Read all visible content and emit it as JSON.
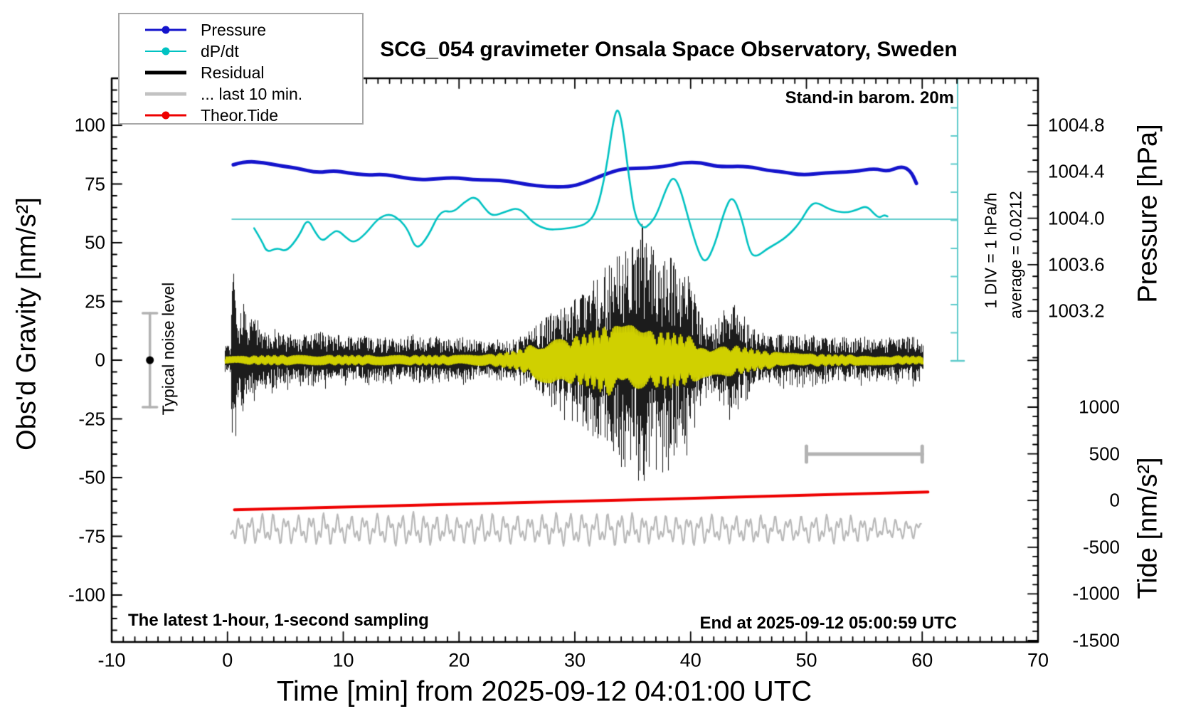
{
  "title": "SCG_054 gravimeter Onsala Space Observatory, Sweden",
  "annotations": {
    "barometer": "Stand-in barom. 20m",
    "div_scale": "1 DIV = 1 hPa/h",
    "average": "average = 0.0212",
    "noise_label": "Typical noise level",
    "sampling_note": "The latest 1-hour, 1-second sampling",
    "end_note": "End at 2025-09-12 05:00:59 UTC"
  },
  "legend": {
    "items": [
      {
        "label": "Pressure",
        "color": "#1414cc",
        "lw": 3,
        "dot": true
      },
      {
        "label": "dP/dt",
        "color": "#00c2c2",
        "lw": 2,
        "dot": true
      },
      {
        "label": "Residual",
        "color": "#000000",
        "lw": 5,
        "dot": false
      },
      {
        "label": "... last 10 min.",
        "color": "#c2c2c2",
        "lw": 5,
        "dot": false
      },
      {
        "label": "Theor.Tide",
        "color": "#ee0000",
        "lw": 3,
        "dot": true
      }
    ]
  },
  "axes": {
    "x": {
      "label": "Time [min] from 2025-09-12 04:01:00 UTC",
      "min": -10,
      "max": 70,
      "major_ticks": [
        -10,
        0,
        10,
        20,
        30,
        40,
        50,
        60,
        70
      ],
      "minor_step": 1
    },
    "gravity": {
      "label": "Obs'd Gravity [nm/s²]",
      "min": -120,
      "max": 120,
      "major_ticks": [
        100,
        75,
        50,
        25,
        0,
        -25,
        -50,
        -75,
        -100
      ],
      "minor_step": 5
    },
    "pressure": {
      "label": "Pressure [hPa]",
      "major_ticks": [
        "1004.8",
        "1004.4",
        "1004.0",
        "1003.6",
        "1003.2"
      ],
      "minor_step": 0.1
    },
    "tide": {
      "label": "Tide [nm/s²]",
      "major_ticks": [
        "1000",
        "500",
        "0",
        "-500",
        "-1000",
        "-1500"
      ],
      "minor_step": 100
    }
  },
  "colors": {
    "pressure": "#1414cc",
    "dpdt": "#00c2c2",
    "dpdt_guides": "#5fcccc",
    "residual": "#000000",
    "residual_filtered": "#d0d000",
    "last10": "#b9b9b9",
    "tide": "#ee0000",
    "gray_markers": "#b3b3b3"
  },
  "chart_data": {
    "type": "line",
    "x_unit": "min",
    "x_range": [
      -10,
      70
    ],
    "series": [
      {
        "name": "Pressure",
        "axis": "pressure",
        "unit": "hPa",
        "color": "#1414cc",
        "width": 5,
        "points": [
          [
            0.5,
            1004.46
          ],
          [
            1.5,
            1004.49
          ],
          [
            3.1,
            1004.48
          ],
          [
            4.6,
            1004.45
          ],
          [
            6.1,
            1004.43
          ],
          [
            7.7,
            1004.39
          ],
          [
            9.2,
            1004.41
          ],
          [
            10.4,
            1004.39
          ],
          [
            12.0,
            1004.37
          ],
          [
            13.5,
            1004.38
          ],
          [
            15.1,
            1004.35
          ],
          [
            16.6,
            1004.33
          ],
          [
            18.1,
            1004.34
          ],
          [
            19.7,
            1004.35
          ],
          [
            21.2,
            1004.33
          ],
          [
            22.7,
            1004.33
          ],
          [
            24.3,
            1004.32
          ],
          [
            25.8,
            1004.29
          ],
          [
            27.6,
            1004.27
          ],
          [
            29.5,
            1004.27
          ],
          [
            30.7,
            1004.3
          ],
          [
            31.9,
            1004.35
          ],
          [
            33.2,
            1004.4
          ],
          [
            34.4,
            1004.43
          ],
          [
            36.2,
            1004.43
          ],
          [
            38.1,
            1004.45
          ],
          [
            39.3,
            1004.48
          ],
          [
            40.9,
            1004.48
          ],
          [
            42.4,
            1004.44
          ],
          [
            44.8,
            1004.45
          ],
          [
            46.7,
            1004.41
          ],
          [
            47.9,
            1004.4
          ],
          [
            49.6,
            1004.37
          ],
          [
            51.6,
            1004.39
          ],
          [
            54.1,
            1004.4
          ],
          [
            55.9,
            1004.43
          ],
          [
            57.0,
            1004.4
          ],
          [
            58.2,
            1004.45
          ],
          [
            59.0,
            1004.41
          ],
          [
            59.5,
            1004.3
          ]
        ]
      },
      {
        "name": "dP/dt",
        "axis": "dpdt",
        "unit": "hPa/h",
        "color": "#00c2c2",
        "width": 2.6,
        "average": 0.0212,
        "points": [
          [
            2.3,
            -0.29
          ],
          [
            3.0,
            -0.75
          ],
          [
            3.4,
            -1.13
          ],
          [
            4.3,
            -0.96
          ],
          [
            5.1,
            -1.11
          ],
          [
            6.2,
            -0.55
          ],
          [
            6.9,
            0.07
          ],
          [
            7.6,
            -0.45
          ],
          [
            8.2,
            -0.76
          ],
          [
            8.9,
            -0.5
          ],
          [
            9.5,
            -0.34
          ],
          [
            10.2,
            -0.6
          ],
          [
            10.9,
            -0.81
          ],
          [
            11.9,
            -0.5
          ],
          [
            13.0,
            0.05
          ],
          [
            14.0,
            0.22
          ],
          [
            14.9,
            0.0
          ],
          [
            15.6,
            -0.35
          ],
          [
            16.3,
            -1.06
          ],
          [
            17.3,
            -0.6
          ],
          [
            18.4,
            0.34
          ],
          [
            19.5,
            0.25
          ],
          [
            20.4,
            0.6
          ],
          [
            21.4,
            0.84
          ],
          [
            22.3,
            0.35
          ],
          [
            22.9,
            0.12
          ],
          [
            24.0,
            0.28
          ],
          [
            25.2,
            0.44
          ],
          [
            26.4,
            -0.12
          ],
          [
            27.6,
            -0.34
          ],
          [
            28.8,
            -0.32
          ],
          [
            30.1,
            -0.25
          ],
          [
            31.1,
            -0.12
          ],
          [
            31.9,
            0.3
          ],
          [
            32.7,
            1.7
          ],
          [
            33.3,
            3.4
          ],
          [
            33.7,
            3.91
          ],
          [
            34.1,
            3.3
          ],
          [
            34.7,
            1.4
          ],
          [
            35.2,
            0.1
          ],
          [
            35.9,
            -0.32
          ],
          [
            36.5,
            -0.15
          ],
          [
            37.1,
            0.2
          ],
          [
            37.9,
            1.1
          ],
          [
            38.5,
            1.52
          ],
          [
            39.1,
            1.1
          ],
          [
            39.9,
            -0.1
          ],
          [
            40.7,
            -1.15
          ],
          [
            41.3,
            -1.52
          ],
          [
            42.1,
            -0.85
          ],
          [
            42.9,
            0.3
          ],
          [
            43.6,
            0.88
          ],
          [
            44.4,
            0.1
          ],
          [
            45.1,
            -1.15
          ],
          [
            45.7,
            -1.28
          ],
          [
            46.6,
            -1.0
          ],
          [
            47.5,
            -0.8
          ],
          [
            48.4,
            -0.55
          ],
          [
            49.4,
            -0.12
          ],
          [
            50.3,
            0.5
          ],
          [
            50.9,
            0.61
          ],
          [
            51.8,
            0.4
          ],
          [
            52.6,
            0.28
          ],
          [
            53.5,
            0.25
          ],
          [
            54.4,
            0.35
          ],
          [
            55.2,
            0.49
          ],
          [
            55.9,
            0.18
          ],
          [
            56.3,
            0.07
          ],
          [
            56.7,
            0.17
          ],
          [
            57.0,
            0.12
          ]
        ]
      },
      {
        "name": "Residual",
        "axis": "gravity",
        "unit": "nm/s²",
        "color": "#000000",
        "style": "noise",
        "envelope": [
          [
            0.3,
            6
          ],
          [
            0.42,
            58
          ],
          [
            0.55,
            45
          ],
          [
            0.75,
            34
          ],
          [
            1.0,
            22
          ],
          [
            1.4,
            26
          ],
          [
            1.8,
            16
          ],
          [
            2.3,
            24
          ],
          [
            2.8,
            13
          ],
          [
            3.5,
            12
          ],
          [
            4.2,
            14
          ],
          [
            5.0,
            11
          ],
          [
            6.0,
            12
          ],
          [
            7.0,
            10
          ],
          [
            8.0,
            12
          ],
          [
            9.0,
            10
          ],
          [
            10.0,
            11
          ],
          [
            11.0,
            9
          ],
          [
            12.0,
            11
          ],
          [
            13.0,
            9
          ],
          [
            14.0,
            10
          ],
          [
            15.0,
            9
          ],
          [
            16.0,
            11
          ],
          [
            17.0,
            9
          ],
          [
            18.0,
            10
          ],
          [
            19.0,
            9
          ],
          [
            20.0,
            10
          ],
          [
            21.0,
            9
          ],
          [
            22.0,
            8
          ],
          [
            23.0,
            9
          ],
          [
            24.0,
            8
          ],
          [
            25.0,
            9
          ],
          [
            26.0,
            12
          ],
          [
            27.0,
            16
          ],
          [
            28.0,
            20
          ],
          [
            29.0,
            22
          ],
          [
            30.0,
            26
          ],
          [
            31.0,
            31
          ],
          [
            32.0,
            36
          ],
          [
            33.0,
            42
          ],
          [
            34.0,
            45
          ],
          [
            35.0,
            48
          ],
          [
            35.8,
            58
          ],
          [
            36.3,
            50
          ],
          [
            37.0,
            46
          ],
          [
            38.0,
            44
          ],
          [
            39.0,
            42
          ],
          [
            40.0,
            34
          ],
          [
            40.7,
            22
          ],
          [
            41.3,
            16
          ],
          [
            42.0,
            14
          ],
          [
            42.7,
            20
          ],
          [
            43.5,
            25
          ],
          [
            44.3,
            22
          ],
          [
            45.0,
            15
          ],
          [
            46.0,
            12
          ],
          [
            47.0,
            10
          ],
          [
            48.0,
            11
          ],
          [
            49.0,
            10
          ],
          [
            50.0,
            11
          ],
          [
            51.0,
            10
          ],
          [
            52.0,
            9
          ],
          [
            53.0,
            10
          ],
          [
            54.0,
            9
          ],
          [
            55.0,
            10
          ],
          [
            56.0,
            9
          ],
          [
            57.0,
            10
          ],
          [
            58.0,
            9
          ],
          [
            59.0,
            10
          ],
          [
            60.0,
            9
          ]
        ]
      },
      {
        "name": "Residual filtered overlay",
        "axis": "gravity",
        "unit": "nm/s²",
        "color": "#d0d000",
        "style": "wavepacket",
        "period_min": 0.14,
        "envelope": [
          [
            0.3,
            1.5
          ],
          [
            4,
            2
          ],
          [
            8,
            2
          ],
          [
            12,
            2
          ],
          [
            16,
            2
          ],
          [
            20,
            2
          ],
          [
            23,
            2.5
          ],
          [
            25,
            4
          ],
          [
            26,
            6
          ],
          [
            27,
            9
          ],
          [
            28,
            10
          ],
          [
            29,
            9.5
          ],
          [
            30,
            10
          ],
          [
            31,
            11
          ],
          [
            32,
            13
          ],
          [
            33,
            15
          ],
          [
            34,
            14
          ],
          [
            35,
            15
          ],
          [
            36,
            13
          ],
          [
            37,
            11.5
          ],
          [
            38,
            12
          ],
          [
            39,
            11
          ],
          [
            40,
            10
          ],
          [
            41,
            7.5
          ],
          [
            42,
            6
          ],
          [
            43,
            7
          ],
          [
            44,
            6
          ],
          [
            45,
            5
          ],
          [
            46,
            4
          ],
          [
            47,
            3.5
          ],
          [
            48,
            3
          ],
          [
            50,
            2.6
          ],
          [
            53,
            2.2
          ],
          [
            56,
            2
          ],
          [
            58,
            1.8
          ],
          [
            60,
            1.6
          ]
        ]
      },
      {
        "name": "... last 10 min.",
        "axis": "gravity",
        "unit": "nm/s²",
        "color": "#b9b9b9",
        "style": "wiggle",
        "center": -72,
        "width": 2.2,
        "envelope": [
          [
            0.3,
            5
          ],
          [
            2,
            6.5
          ],
          [
            4,
            7
          ],
          [
            6,
            6
          ],
          [
            8,
            7.5
          ],
          [
            10,
            6
          ],
          [
            12,
            6.5
          ],
          [
            14,
            7
          ],
          [
            16,
            7.5
          ],
          [
            18,
            6.5
          ],
          [
            20,
            6
          ],
          [
            22,
            7
          ],
          [
            24,
            6.5
          ],
          [
            26,
            6
          ],
          [
            28,
            7
          ],
          [
            30,
            7.5
          ],
          [
            32,
            7
          ],
          [
            34,
            7.5
          ],
          [
            36,
            6.5
          ],
          [
            38,
            6
          ],
          [
            40,
            7
          ],
          [
            42,
            6.5
          ],
          [
            44,
            6
          ],
          [
            46,
            6.5
          ],
          [
            48,
            5.5
          ],
          [
            50,
            6
          ],
          [
            52,
            6.5
          ],
          [
            54,
            6
          ],
          [
            56,
            5
          ],
          [
            58,
            4.5
          ],
          [
            59.7,
            4
          ]
        ]
      },
      {
        "name": "Theor.Tide",
        "axis": "tide",
        "unit": "nm/s²",
        "color": "#ee0000",
        "width": 4,
        "points": [
          [
            0.6,
            -99
          ],
          [
            15,
            -52
          ],
          [
            30,
            -10
          ],
          [
            45,
            40
          ],
          [
            60.5,
            91
          ]
        ]
      }
    ],
    "markers": {
      "typical_noise_bar": {
        "t": -6.7,
        "center": 0,
        "half_range": 20
      },
      "ten_min_scale_bar": {
        "t0": 50,
        "t1": 60,
        "gravity_level": -40,
        "length_min": 10
      },
      "dpdt_scale_bar": {
        "t": 63.05,
        "divisions": 10,
        "div_value_hpa_per_h": 1
      },
      "dpdt_average_line": {
        "value": 0.0212,
        "t0": 0.4,
        "t1": 63.05
      }
    }
  }
}
